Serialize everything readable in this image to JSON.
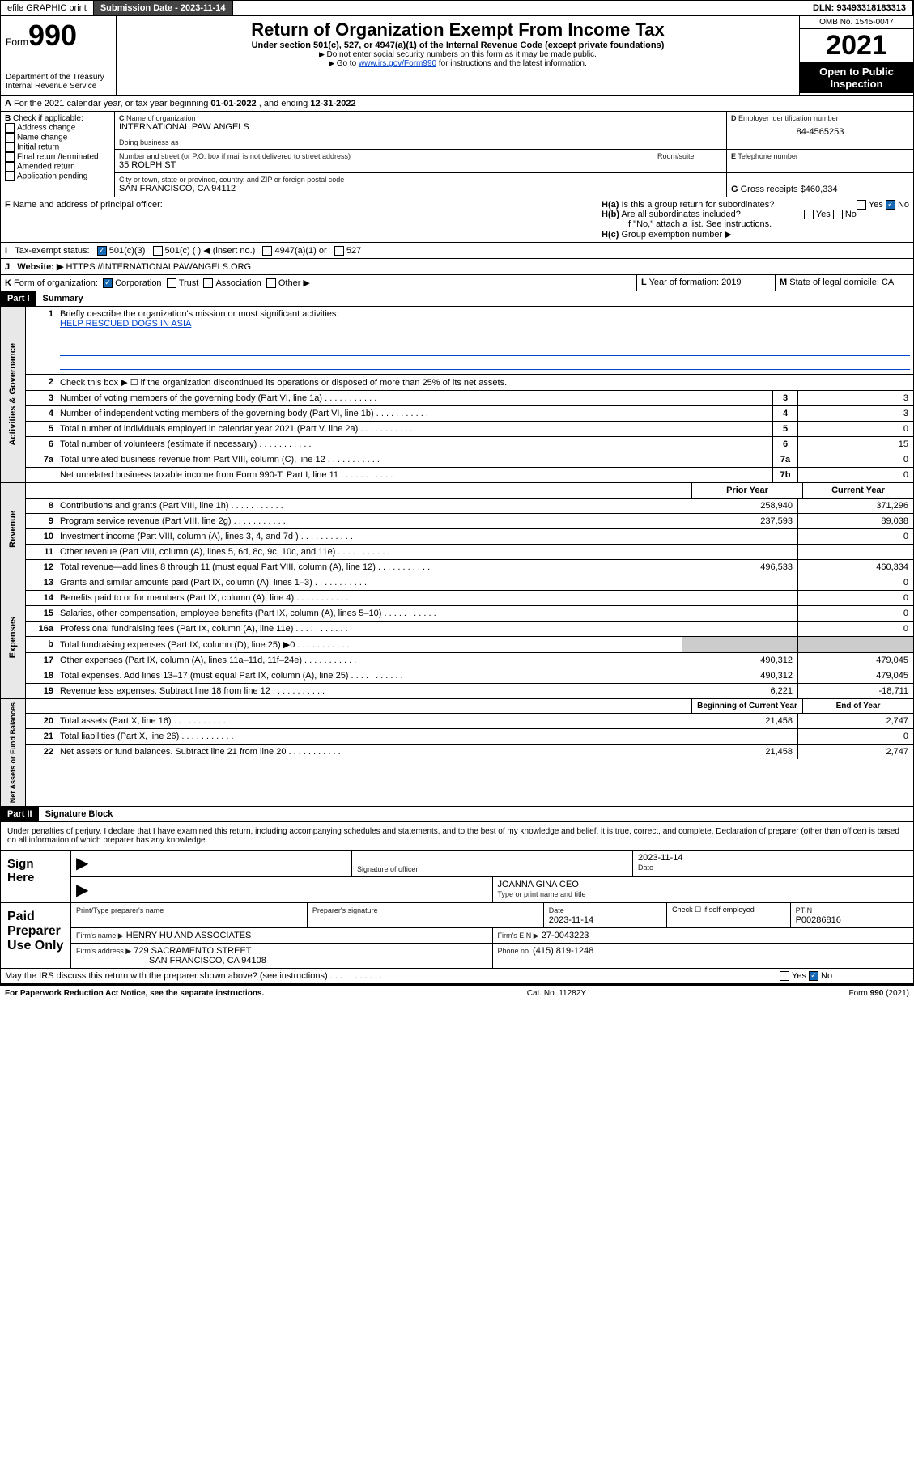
{
  "topbar": {
    "efile": "efile GRAPHIC print",
    "sub_lbl": "Submission Date - ",
    "sub_date": "2023-11-14",
    "dln_lbl": "DLN: ",
    "dln": "93493318183313"
  },
  "header": {
    "form_lbl": "Form",
    "form_no": "990",
    "dept": "Department of the Treasury",
    "irs": "Internal Revenue Service",
    "title": "Return of Organization Exempt From Income Tax",
    "sub": "Under section 501(c), 527, or 4947(a)(1) of the Internal Revenue Code (except private foundations)",
    "note1": "Do not enter social security numbers on this form as it may be made public.",
    "note2_pre": "Go to ",
    "note2_link": "www.irs.gov/Form990",
    "note2_post": " for instructions and the latest information.",
    "omb": "OMB No. 1545-0047",
    "year": "2021",
    "open": "Open to Public Inspection"
  },
  "A": {
    "pre": "For the 2021 calendar year, or tax year beginning ",
    "d1": "01-01-2022",
    "mid": " , and ending ",
    "d2": "12-31-2022"
  },
  "B": {
    "lbl": "Check if applicable:",
    "opts": [
      "Address change",
      "Name change",
      "Initial return",
      "Final return/terminated",
      "Amended return",
      "Application pending"
    ]
  },
  "C": {
    "name_lbl": "Name of organization",
    "name": "INTERNATIONAL PAW ANGELS",
    "dba_lbl": "Doing business as",
    "addr_lbl": "Number and street (or P.O. box if mail is not delivered to street address)",
    "room_lbl": "Room/suite",
    "addr": "35 ROLPH ST",
    "city_lbl": "City or town, state or province, country, and ZIP or foreign postal code",
    "city": "SAN FRANCISCO, CA  94112"
  },
  "D": {
    "lbl": "Employer identification number",
    "val": "84-4565253"
  },
  "E": {
    "lbl": "Telephone number",
    "val": ""
  },
  "G": {
    "lbl": "Gross receipts $",
    "val": "460,334"
  },
  "F": {
    "lbl": "Name and address of principal officer:",
    "val": ""
  },
  "H": {
    "a": "Is this a group return for subordinates?",
    "b": "Are all subordinates included?",
    "b_note": "If \"No,\" attach a list. See instructions.",
    "c": "Group exemption number ▶",
    "yes": "Yes",
    "no": "No"
  },
  "I": {
    "lbl": "Tax-exempt status:",
    "o1": "501(c)(3)",
    "o2": "501(c) (  ) ◀ (insert no.)",
    "o3": "4947(a)(1) or",
    "o4": "527"
  },
  "J": {
    "lbl": "Website: ▶",
    "val": "HTTPS://INTERNATIONALPAWANGELS.ORG"
  },
  "K": {
    "lbl": "Form of organization:",
    "o1": "Corporation",
    "o2": "Trust",
    "o3": "Association",
    "o4": "Other ▶"
  },
  "L": {
    "lbl": "Year of formation: ",
    "val": "2019"
  },
  "M": {
    "lbl": "State of legal domicile: ",
    "val": "CA"
  },
  "part1": {
    "hdr": "Part I",
    "title": "Summary"
  },
  "gov": {
    "lbl": "Activities & Governance",
    "l1": {
      "n": "1",
      "t": "Briefly describe the organization's mission or most significant activities:",
      "val": "HELP RESCUED DOGS IN ASIA"
    },
    "l2": {
      "n": "2",
      "t": "Check this box ▶ ☐ if the organization discontinued its operations or disposed of more than 25% of its net assets."
    },
    "l3": {
      "n": "3",
      "t": "Number of voting members of the governing body (Part VI, line 1a)",
      "v": "3"
    },
    "l4": {
      "n": "4",
      "t": "Number of independent voting members of the governing body (Part VI, line 1b)",
      "v": "3"
    },
    "l5": {
      "n": "5",
      "t": "Total number of individuals employed in calendar year 2021 (Part V, line 2a)",
      "v": "0"
    },
    "l6": {
      "n": "6",
      "t": "Total number of volunteers (estimate if necessary)",
      "v": "15"
    },
    "l7a": {
      "n": "7a",
      "t": "Total unrelated business revenue from Part VIII, column (C), line 12",
      "v": "0"
    },
    "l7b": {
      "n": "",
      "t": "Net unrelated business taxable income from Form 990-T, Part I, line 11",
      "box": "7b",
      "v": "0"
    }
  },
  "cols": {
    "prior": "Prior Year",
    "curr": "Current Year"
  },
  "rev": {
    "lbl": "Revenue",
    "rows": [
      {
        "n": "8",
        "t": "Contributions and grants (Part VIII, line 1h)",
        "p": "258,940",
        "c": "371,296"
      },
      {
        "n": "9",
        "t": "Program service revenue (Part VIII, line 2g)",
        "p": "237,593",
        "c": "89,038"
      },
      {
        "n": "10",
        "t": "Investment income (Part VIII, column (A), lines 3, 4, and 7d )",
        "p": "",
        "c": "0"
      },
      {
        "n": "11",
        "t": "Other revenue (Part VIII, column (A), lines 5, 6d, 8c, 9c, 10c, and 11e)",
        "p": "",
        "c": ""
      },
      {
        "n": "12",
        "t": "Total revenue—add lines 8 through 11 (must equal Part VIII, column (A), line 12)",
        "p": "496,533",
        "c": "460,334"
      }
    ]
  },
  "exp": {
    "lbl": "Expenses",
    "rows": [
      {
        "n": "13",
        "t": "Grants and similar amounts paid (Part IX, column (A), lines 1–3)",
        "p": "",
        "c": "0"
      },
      {
        "n": "14",
        "t": "Benefits paid to or for members (Part IX, column (A), line 4)",
        "p": "",
        "c": "0"
      },
      {
        "n": "15",
        "t": "Salaries, other compensation, employee benefits (Part IX, column (A), lines 5–10)",
        "p": "",
        "c": "0"
      },
      {
        "n": "16a",
        "t": "Professional fundraising fees (Part IX, column (A), line 11e)",
        "p": "",
        "c": "0"
      },
      {
        "n": "b",
        "t": "Total fundraising expenses (Part IX, column (D), line 25) ▶0",
        "p": "grey",
        "c": "grey",
        "nob": true
      },
      {
        "n": "17",
        "t": "Other expenses (Part IX, column (A), lines 11a–11d, 11f–24e)",
        "p": "490,312",
        "c": "479,045"
      },
      {
        "n": "18",
        "t": "Total expenses. Add lines 13–17 (must equal Part IX, column (A), line 25)",
        "p": "490,312",
        "c": "479,045"
      },
      {
        "n": "19",
        "t": "Revenue less expenses. Subtract line 18 from line 12",
        "p": "6,221",
        "c": "-18,711"
      }
    ]
  },
  "net": {
    "lbl": "Net Assets or Fund Balances",
    "hdr_p": "Beginning of Current Year",
    "hdr_c": "End of Year",
    "rows": [
      {
        "n": "20",
        "t": "Total assets (Part X, line 16)",
        "p": "21,458",
        "c": "2,747"
      },
      {
        "n": "21",
        "t": "Total liabilities (Part X, line 26)",
        "p": "",
        "c": "0"
      },
      {
        "n": "22",
        "t": "Net assets or fund balances. Subtract line 21 from line 20",
        "p": "21,458",
        "c": "2,747"
      }
    ]
  },
  "part2": {
    "hdr": "Part II",
    "title": "Signature Block"
  },
  "sig": {
    "decl": "Under penalties of perjury, I declare that I have examined this return, including accompanying schedules and statements, and to the best of my knowledge and belief, it is true, correct, and complete. Declaration of preparer (other than officer) is based on all information of which preparer has any knowledge.",
    "sign_here": "Sign Here",
    "sig_off": "Signature of officer",
    "date_lbl": "Date",
    "date": "2023-11-14",
    "officer": "JOANNA GINA  CEO",
    "officer_lbl": "Type or print name and title",
    "paid": "Paid Preparer Use Only",
    "prep_name_lbl": "Print/Type preparer's name",
    "prep_sig_lbl": "Preparer's signature",
    "prep_date": "2023-11-14",
    "self_emp": "Check ☐ if self-employed",
    "ptin_lbl": "PTIN",
    "ptin": "P00286816",
    "firm_name_lbl": "Firm's name  ▶",
    "firm_name": "HENRY HU AND ASSOCIATES",
    "firm_ein_lbl": "Firm's EIN ▶",
    "firm_ein": "27-0043223",
    "firm_addr_lbl": "Firm's address ▶",
    "firm_addr1": "729 SACRAMENTO STREET",
    "firm_addr2": "SAN FRANCISCO, CA  94108",
    "phone_lbl": "Phone no. ",
    "phone": "(415) 819-1248",
    "discuss": "May the IRS discuss this return with the preparer shown above? (see instructions)"
  },
  "footer": {
    "l": "For Paperwork Reduction Act Notice, see the separate instructions.",
    "m": "Cat. No. 11282Y",
    "r": "Form 990 (2021)"
  }
}
